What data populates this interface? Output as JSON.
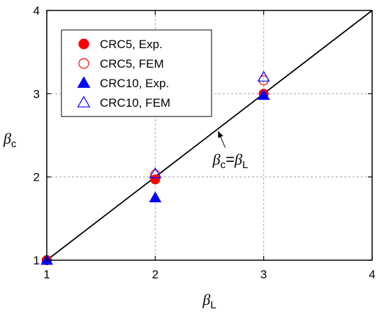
{
  "chart_data": {
    "type": "scatter",
    "x_axis": {
      "label": {
        "symbol": "β",
        "sub": "L"
      },
      "lim": [
        1,
        4
      ],
      "ticks": [
        1,
        2,
        3,
        4
      ],
      "tick_labels": [
        "1",
        "2",
        "3",
        "4"
      ]
    },
    "y_axis": {
      "label": {
        "symbol": "β",
        "sub": "c"
      },
      "lim": [
        1,
        4
      ],
      "ticks": [
        1,
        2,
        3,
        4
      ],
      "tick_labels": [
        "1",
        "2",
        "3",
        "4"
      ]
    },
    "grid": true,
    "legend_position": "top-left",
    "series": [
      {
        "name": "CRC5, Exp.",
        "marker": "circle",
        "filled": true,
        "color": "#ff0000",
        "x": [
          1,
          2,
          3
        ],
        "y": [
          1,
          1.97,
          3.0
        ]
      },
      {
        "name": "CRC5, FEM",
        "marker": "circle",
        "filled": false,
        "color": "#ff0000",
        "x": [
          1,
          2,
          3
        ],
        "y": [
          1,
          2.03,
          3.16
        ]
      },
      {
        "name": "CRC10, Exp.",
        "marker": "triangle",
        "filled": true,
        "color": "#0000ff",
        "x": [
          1,
          2,
          3
        ],
        "y": [
          1,
          1.75,
          2.98
        ]
      },
      {
        "name": "CRC10, FEM",
        "marker": "triangle",
        "filled": false,
        "color": "#0000ff",
        "x": [
          1,
          2,
          3
        ],
        "y": [
          1,
          2.04,
          3.2
        ]
      }
    ],
    "reference_line": {
      "x": [
        1,
        4
      ],
      "y": [
        1,
        4
      ],
      "color": "#000000"
    },
    "annotation": {
      "lhs": {
        "symbol": "β",
        "sub": "c"
      },
      "equals": "=",
      "rhs": {
        "symbol": "β",
        "sub": "L"
      },
      "text_at": [
        2.53,
        2.15
      ],
      "arrow_to": [
        2.58,
        2.55
      ]
    }
  }
}
